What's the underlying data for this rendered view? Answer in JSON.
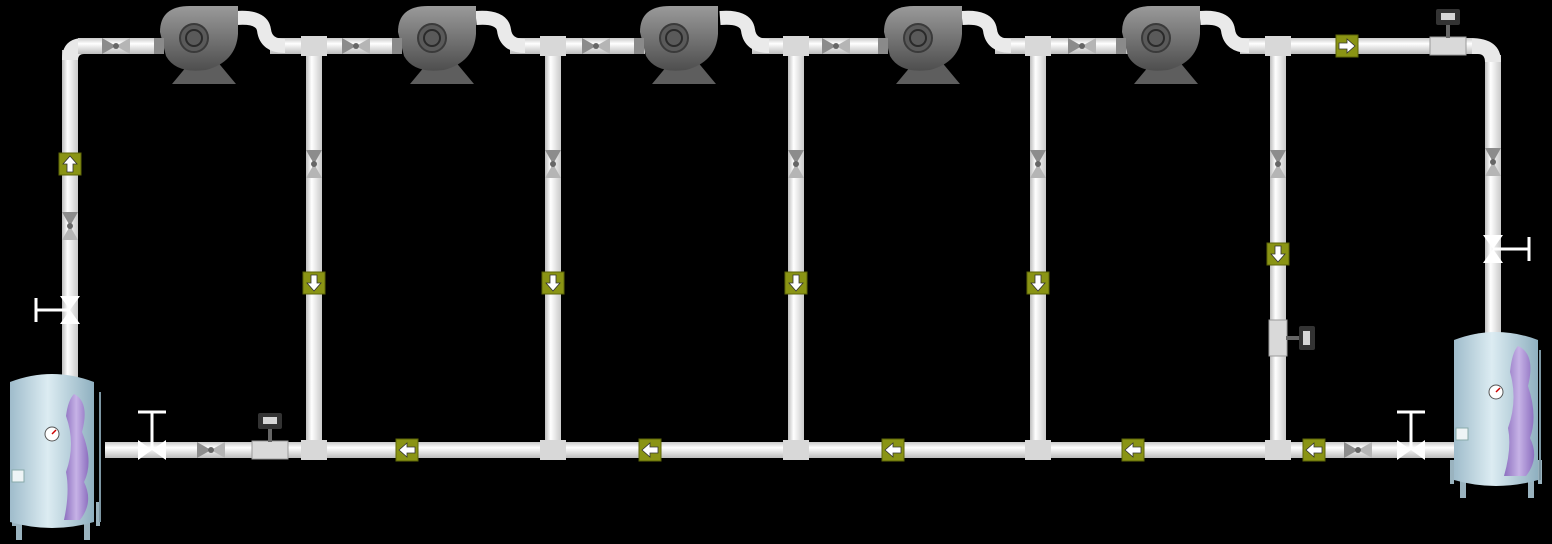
{
  "colors": {
    "background": "#000000",
    "pipe": "#f4f4f4",
    "pipe_shadow": "#bfbfbf",
    "arrow_box": "#8a9414",
    "arrow_box_border": "#5e6608",
    "blower": "#6b6b6b",
    "valve_grey": "#8c8c8c",
    "tank_body": "#c6dde6",
    "tank_liquid": "#a98fd0",
    "sensor": "#333333",
    "sensor_screen": "#d6d6d6"
  },
  "components": {
    "blowers": [
      "blower-icon",
      "blower-icon",
      "blower-icon",
      "blower-icon",
      "blower-icon"
    ],
    "tanks": [
      "tank-icon",
      "tank-icon"
    ],
    "flow_arrows": {
      "header_return": "arrow-left-icon",
      "branch_down": "arrow-down-icon",
      "left_riser": "arrow-up-icon",
      "top_right": "arrow-right-icon"
    },
    "sensors": [
      "pressure-sensor-icon",
      "pressure-sensor-icon",
      "pressure-sensor-icon"
    ],
    "hand_valves": [
      "hand-valve-icon",
      "hand-valve-icon",
      "hand-valve-icon",
      "hand-valve-icon"
    ]
  }
}
